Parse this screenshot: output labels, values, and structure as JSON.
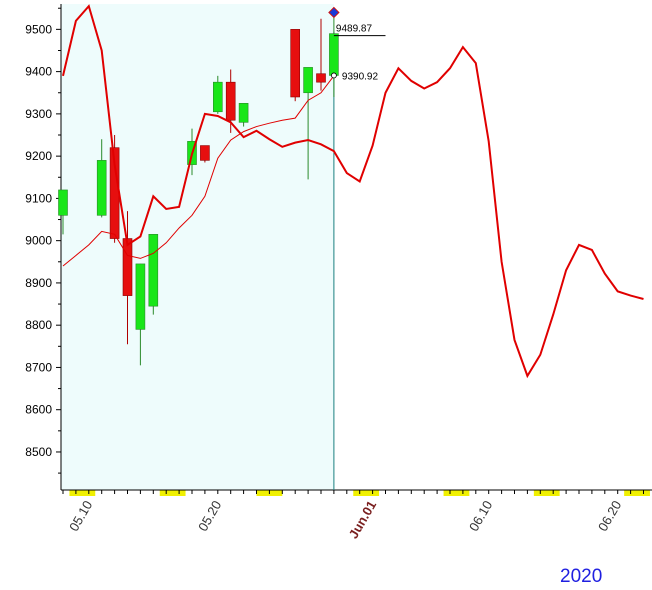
{
  "chart_data": {
    "type": "candlestick",
    "year_label": "2020",
    "y_ticks": [
      8500,
      8600,
      8700,
      8800,
      8900,
      9000,
      9100,
      9200,
      9300,
      9400,
      9500
    ],
    "ylim": [
      8410,
      9560
    ],
    "x_ticks": [
      {
        "label": "05.10",
        "index": 2,
        "bold": false
      },
      {
        "label": "05.20",
        "index": 12,
        "bold": false
      },
      {
        "label": "Jun.01",
        "index": 24,
        "bold": true
      },
      {
        "label": "06.10",
        "index": 33,
        "bold": false
      },
      {
        "label": "06.20",
        "index": 43,
        "bold": false
      }
    ],
    "candles": [
      {
        "i": 0,
        "open": 9060,
        "close": 9120,
        "high": 9120,
        "low": 9015
      },
      {
        "i": 3,
        "open": 9060,
        "close": 9190,
        "high": 9240,
        "low": 9055
      },
      {
        "i": 4,
        "open": 9220,
        "close": 9005,
        "high": 9250,
        "low": 8995
      },
      {
        "i": 5,
        "open": 9005,
        "close": 8870,
        "high": 9070,
        "low": 8755
      },
      {
        "i": 6,
        "open": 8790,
        "close": 8945,
        "high": 8945,
        "low": 8705
      },
      {
        "i": 7,
        "open": 8845,
        "close": 9015,
        "high": 9015,
        "low": 8825
      },
      {
        "i": 10,
        "open": 9180,
        "close": 9235,
        "high": 9265,
        "low": 9155
      },
      {
        "i": 11,
        "open": 9225,
        "close": 9190,
        "high": 9225,
        "low": 9185
      },
      {
        "i": 12,
        "open": 9305,
        "close": 9375,
        "high": 9390,
        "low": 9300
      },
      {
        "i": 13,
        "open": 9375,
        "close": 9285,
        "high": 9405,
        "low": 9255
      },
      {
        "i": 14,
        "open": 9280,
        "close": 9325,
        "high": 9325,
        "low": 9270
      },
      {
        "i": 18,
        "open": 9500,
        "close": 9340,
        "high": 9500,
        "low": 9330
      },
      {
        "i": 19,
        "open": 9350,
        "close": 9410,
        "high": 9410,
        "low": 9145
      },
      {
        "i": 20,
        "open": 9395,
        "close": 9375,
        "high": 9525,
        "low": 9355
      },
      {
        "i": 21,
        "open": 9390.92,
        "close": 9489.87,
        "high": 9535,
        "low": 9340
      }
    ],
    "forecast_line": [
      {
        "i": 0,
        "y": 9390
      },
      {
        "i": 1,
        "y": 9520
      },
      {
        "i": 2,
        "y": 9555
      },
      {
        "i": 3,
        "y": 9450
      },
      {
        "i": 4,
        "y": 9180
      },
      {
        "i": 5,
        "y": 8990
      },
      {
        "i": 6,
        "y": 9010
      },
      {
        "i": 7,
        "y": 9105
      },
      {
        "i": 8,
        "y": 9075
      },
      {
        "i": 9,
        "y": 9080
      },
      {
        "i": 10,
        "y": 9205
      },
      {
        "i": 11,
        "y": 9300
      },
      {
        "i": 12,
        "y": 9295
      },
      {
        "i": 13,
        "y": 9280
      },
      {
        "i": 14,
        "y": 9245
      },
      {
        "i": 15,
        "y": 9260
      },
      {
        "i": 16,
        "y": 9240
      },
      {
        "i": 17,
        "y": 9222
      },
      {
        "i": 18,
        "y": 9232
      },
      {
        "i": 19,
        "y": 9238
      },
      {
        "i": 20,
        "y": 9228
      },
      {
        "i": 21,
        "y": 9212
      },
      {
        "i": 22,
        "y": 9160
      },
      {
        "i": 23,
        "y": 9140
      },
      {
        "i": 24,
        "y": 9225
      },
      {
        "i": 25,
        "y": 9350
      },
      {
        "i": 26,
        "y": 9408
      },
      {
        "i": 27,
        "y": 9378
      },
      {
        "i": 28,
        "y": 9360
      },
      {
        "i": 29,
        "y": 9375
      },
      {
        "i": 30,
        "y": 9408
      },
      {
        "i": 31,
        "y": 9458
      },
      {
        "i": 32,
        "y": 9420
      },
      {
        "i": 33,
        "y": 9235
      },
      {
        "i": 34,
        "y": 8950
      },
      {
        "i": 35,
        "y": 8765
      },
      {
        "i": 36,
        "y": 8680
      },
      {
        "i": 37,
        "y": 8730
      },
      {
        "i": 38,
        "y": 8825
      },
      {
        "i": 39,
        "y": 8930
      },
      {
        "i": 40,
        "y": 8990
      },
      {
        "i": 41,
        "y": 8978
      },
      {
        "i": 42,
        "y": 8922
      },
      {
        "i": 43,
        "y": 8880
      },
      {
        "i": 44,
        "y": 8870
      },
      {
        "i": 45,
        "y": 8862
      }
    ],
    "ma_line": [
      {
        "i": 0,
        "y": 8940
      },
      {
        "i": 1,
        "y": 8965
      },
      {
        "i": 2,
        "y": 8990
      },
      {
        "i": 3,
        "y": 9022
      },
      {
        "i": 4,
        "y": 9015
      },
      {
        "i": 5,
        "y": 8965
      },
      {
        "i": 6,
        "y": 8958
      },
      {
        "i": 7,
        "y": 8970
      },
      {
        "i": 8,
        "y": 8995
      },
      {
        "i": 9,
        "y": 9030
      },
      {
        "i": 10,
        "y": 9060
      },
      {
        "i": 11,
        "y": 9105
      },
      {
        "i": 12,
        "y": 9195
      },
      {
        "i": 13,
        "y": 9238
      },
      {
        "i": 14,
        "y": 9258
      },
      {
        "i": 15,
        "y": 9270
      },
      {
        "i": 16,
        "y": 9278
      },
      {
        "i": 17,
        "y": 9285
      },
      {
        "i": 18,
        "y": 9290
      },
      {
        "i": 19,
        "y": 9332
      },
      {
        "i": 20,
        "y": 9350
      },
      {
        "i": 21,
        "y": 9390
      }
    ],
    "annotations": [
      {
        "text": "9489.87",
        "i": 21,
        "y": 9489.87,
        "line_to_i": 25
      },
      {
        "text": "9390.92",
        "i": 21,
        "y": 9390.92
      }
    ],
    "highlight_range": {
      "start_i": -0.5,
      "end_i": 21
    },
    "colors": {
      "up": "#19e619",
      "down": "#e60f0f",
      "forecast": "#e00000",
      "ma": "#e00000",
      "highlight": "#eefcfc",
      "marker": "#f0f000",
      "cursor": "#1b8080"
    }
  }
}
